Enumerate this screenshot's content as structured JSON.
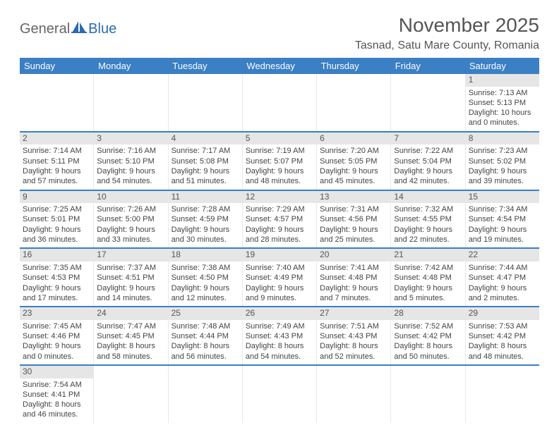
{
  "logo": {
    "text1": "General",
    "text2": "Blue"
  },
  "title": "November 2025",
  "location": "Tasnad, Satu Mare County, Romania",
  "weekday_bg": "#3b7fc4",
  "weekdays": [
    "Sunday",
    "Monday",
    "Tuesday",
    "Wednesday",
    "Thursday",
    "Friday",
    "Saturday"
  ],
  "weeks": [
    [
      null,
      null,
      null,
      null,
      null,
      null,
      {
        "n": "1",
        "sr": "Sunrise: 7:13 AM",
        "ss": "Sunset: 5:13 PM",
        "dl": "Daylight: 10 hours and 0 minutes."
      }
    ],
    [
      {
        "n": "2",
        "sr": "Sunrise: 7:14 AM",
        "ss": "Sunset: 5:11 PM",
        "dl": "Daylight: 9 hours and 57 minutes."
      },
      {
        "n": "3",
        "sr": "Sunrise: 7:16 AM",
        "ss": "Sunset: 5:10 PM",
        "dl": "Daylight: 9 hours and 54 minutes."
      },
      {
        "n": "4",
        "sr": "Sunrise: 7:17 AM",
        "ss": "Sunset: 5:08 PM",
        "dl": "Daylight: 9 hours and 51 minutes."
      },
      {
        "n": "5",
        "sr": "Sunrise: 7:19 AM",
        "ss": "Sunset: 5:07 PM",
        "dl": "Daylight: 9 hours and 48 minutes."
      },
      {
        "n": "6",
        "sr": "Sunrise: 7:20 AM",
        "ss": "Sunset: 5:05 PM",
        "dl": "Daylight: 9 hours and 45 minutes."
      },
      {
        "n": "7",
        "sr": "Sunrise: 7:22 AM",
        "ss": "Sunset: 5:04 PM",
        "dl": "Daylight: 9 hours and 42 minutes."
      },
      {
        "n": "8",
        "sr": "Sunrise: 7:23 AM",
        "ss": "Sunset: 5:02 PM",
        "dl": "Daylight: 9 hours and 39 minutes."
      }
    ],
    [
      {
        "n": "9",
        "sr": "Sunrise: 7:25 AM",
        "ss": "Sunset: 5:01 PM",
        "dl": "Daylight: 9 hours and 36 minutes."
      },
      {
        "n": "10",
        "sr": "Sunrise: 7:26 AM",
        "ss": "Sunset: 5:00 PM",
        "dl": "Daylight: 9 hours and 33 minutes."
      },
      {
        "n": "11",
        "sr": "Sunrise: 7:28 AM",
        "ss": "Sunset: 4:59 PM",
        "dl": "Daylight: 9 hours and 30 minutes."
      },
      {
        "n": "12",
        "sr": "Sunrise: 7:29 AM",
        "ss": "Sunset: 4:57 PM",
        "dl": "Daylight: 9 hours and 28 minutes."
      },
      {
        "n": "13",
        "sr": "Sunrise: 7:31 AM",
        "ss": "Sunset: 4:56 PM",
        "dl": "Daylight: 9 hours and 25 minutes."
      },
      {
        "n": "14",
        "sr": "Sunrise: 7:32 AM",
        "ss": "Sunset: 4:55 PM",
        "dl": "Daylight: 9 hours and 22 minutes."
      },
      {
        "n": "15",
        "sr": "Sunrise: 7:34 AM",
        "ss": "Sunset: 4:54 PM",
        "dl": "Daylight: 9 hours and 19 minutes."
      }
    ],
    [
      {
        "n": "16",
        "sr": "Sunrise: 7:35 AM",
        "ss": "Sunset: 4:53 PM",
        "dl": "Daylight: 9 hours and 17 minutes."
      },
      {
        "n": "17",
        "sr": "Sunrise: 7:37 AM",
        "ss": "Sunset: 4:51 PM",
        "dl": "Daylight: 9 hours and 14 minutes."
      },
      {
        "n": "18",
        "sr": "Sunrise: 7:38 AM",
        "ss": "Sunset: 4:50 PM",
        "dl": "Daylight: 9 hours and 12 minutes."
      },
      {
        "n": "19",
        "sr": "Sunrise: 7:40 AM",
        "ss": "Sunset: 4:49 PM",
        "dl": "Daylight: 9 hours and 9 minutes."
      },
      {
        "n": "20",
        "sr": "Sunrise: 7:41 AM",
        "ss": "Sunset: 4:48 PM",
        "dl": "Daylight: 9 hours and 7 minutes."
      },
      {
        "n": "21",
        "sr": "Sunrise: 7:42 AM",
        "ss": "Sunset: 4:48 PM",
        "dl": "Daylight: 9 hours and 5 minutes."
      },
      {
        "n": "22",
        "sr": "Sunrise: 7:44 AM",
        "ss": "Sunset: 4:47 PM",
        "dl": "Daylight: 9 hours and 2 minutes."
      }
    ],
    [
      {
        "n": "23",
        "sr": "Sunrise: 7:45 AM",
        "ss": "Sunset: 4:46 PM",
        "dl": "Daylight: 9 hours and 0 minutes."
      },
      {
        "n": "24",
        "sr": "Sunrise: 7:47 AM",
        "ss": "Sunset: 4:45 PM",
        "dl": "Daylight: 8 hours and 58 minutes."
      },
      {
        "n": "25",
        "sr": "Sunrise: 7:48 AM",
        "ss": "Sunset: 4:44 PM",
        "dl": "Daylight: 8 hours and 56 minutes."
      },
      {
        "n": "26",
        "sr": "Sunrise: 7:49 AM",
        "ss": "Sunset: 4:43 PM",
        "dl": "Daylight: 8 hours and 54 minutes."
      },
      {
        "n": "27",
        "sr": "Sunrise: 7:51 AM",
        "ss": "Sunset: 4:43 PM",
        "dl": "Daylight: 8 hours and 52 minutes."
      },
      {
        "n": "28",
        "sr": "Sunrise: 7:52 AM",
        "ss": "Sunset: 4:42 PM",
        "dl": "Daylight: 8 hours and 50 minutes."
      },
      {
        "n": "29",
        "sr": "Sunrise: 7:53 AM",
        "ss": "Sunset: 4:42 PM",
        "dl": "Daylight: 8 hours and 48 minutes."
      }
    ],
    [
      {
        "n": "30",
        "sr": "Sunrise: 7:54 AM",
        "ss": "Sunset: 4:41 PM",
        "dl": "Daylight: 8 hours and 46 minutes."
      },
      null,
      null,
      null,
      null,
      null,
      null
    ]
  ]
}
